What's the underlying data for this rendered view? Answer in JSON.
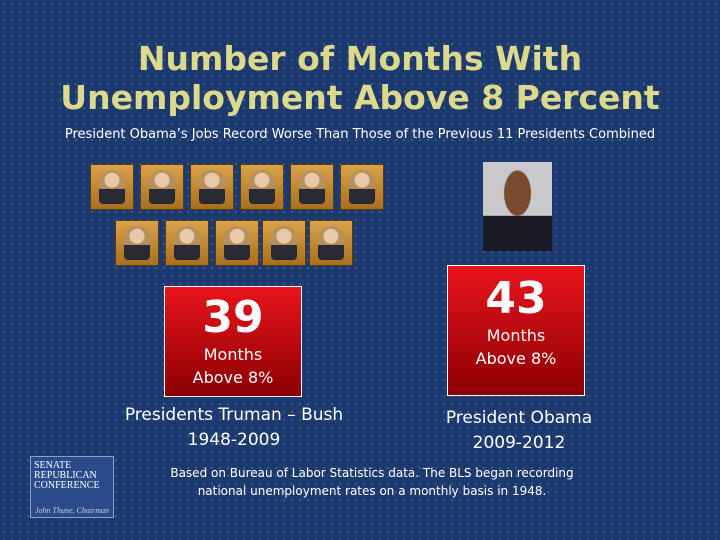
{
  "title": [
    "Number of Months With",
    "Unemployment Above 8 Percent"
  ],
  "subtitle": "President Obama’s Jobs Record Worse Than Those of the Previous 11 Presidents Combined",
  "panels": [
    {
      "value": 39,
      "unit": "Months",
      "qualifier": "Above 8%",
      "label": "Presidents Truman – Bush",
      "years": "1948-2009"
    },
    {
      "value": 43,
      "unit": "Months",
      "qualifier": "Above 8%",
      "label": "President Obama",
      "years": "2009-2012"
    }
  ],
  "footnote": [
    "Based on Bureau of Labor Statistics data. The BLS began recording",
    "national unemployment rates on a monthly basis in 1948."
  ],
  "logo": {
    "lines": [
      "SENATE",
      "REPUBLICAN",
      "CONFERENCE"
    ],
    "chairman": "John Thune, Chairman"
  }
}
